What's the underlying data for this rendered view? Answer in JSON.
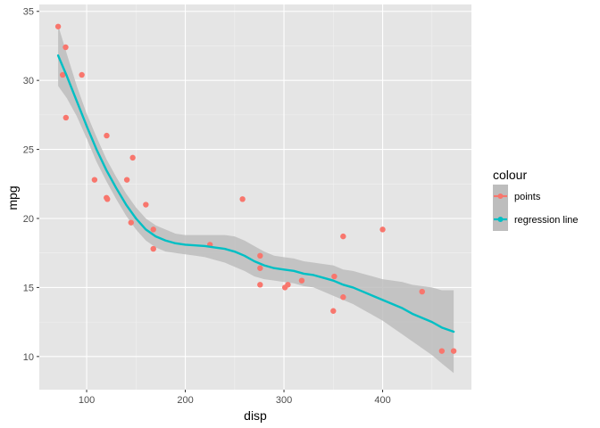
{
  "chart_data": {
    "type": "scatter",
    "title": "",
    "xlabel": "disp",
    "ylabel": "mpg",
    "xlim": [
      52,
      490
    ],
    "ylim": [
      7.6,
      35.5
    ],
    "x_ticks": [
      100,
      200,
      300,
      400
    ],
    "y_ticks": [
      10,
      15,
      20,
      25,
      30,
      35
    ],
    "grid": true,
    "background": "#e5e5e5",
    "legend": {
      "title": "colour",
      "placement": "right",
      "entries": [
        {
          "label": "points",
          "color": "#f8766d"
        },
        {
          "label": "regression line",
          "color": "#00bfc4"
        }
      ]
    },
    "series": [
      {
        "name": "points",
        "type": "scatter",
        "color": "#f8766d",
        "points": [
          [
            71.1,
            33.9
          ],
          [
            75.7,
            30.4
          ],
          [
            78.7,
            32.4
          ],
          [
            79.0,
            27.3
          ],
          [
            95.1,
            30.4
          ],
          [
            108.0,
            22.8
          ],
          [
            120.1,
            21.5
          ],
          [
            120.3,
            26.0
          ],
          [
            121.0,
            21.4
          ],
          [
            140.8,
            22.8
          ],
          [
            145.0,
            19.7
          ],
          [
            146.7,
            24.4
          ],
          [
            160.0,
            21.0
          ],
          [
            167.6,
            19.2
          ],
          [
            167.6,
            17.8
          ],
          [
            225.0,
            18.1
          ],
          [
            258.0,
            21.4
          ],
          [
            275.8,
            16.4
          ],
          [
            275.8,
            17.3
          ],
          [
            275.8,
            15.2
          ],
          [
            301.0,
            15.0
          ],
          [
            304.0,
            15.2
          ],
          [
            318.0,
            15.5
          ],
          [
            350.0,
            13.3
          ],
          [
            351.0,
            15.8
          ],
          [
            360.0,
            18.7
          ],
          [
            360.0,
            14.3
          ],
          [
            400.0,
            19.2
          ],
          [
            440.0,
            14.7
          ],
          [
            460.0,
            10.4
          ],
          [
            472.0,
            10.4
          ]
        ]
      },
      {
        "name": "regression line",
        "type": "line",
        "color": "#00bfc4",
        "confidence_band_color": "#bdbdbd",
        "points": [
          [
            71.1,
            31.8,
            29.6,
            34.0
          ],
          [
            80,
            30.3,
            28.7,
            31.9
          ],
          [
            90,
            28.5,
            27.4,
            29.6
          ],
          [
            100,
            26.7,
            25.8,
            27.6
          ],
          [
            110,
            25.0,
            24.1,
            25.9
          ],
          [
            120,
            23.5,
            22.7,
            24.3
          ],
          [
            130,
            22.2,
            21.4,
            23.0
          ],
          [
            140,
            21.0,
            20.2,
            21.8
          ],
          [
            150,
            20.0,
            19.2,
            20.8
          ],
          [
            160,
            19.2,
            18.4,
            20.0
          ],
          [
            170,
            18.7,
            17.9,
            19.5
          ],
          [
            180,
            18.4,
            17.6,
            19.2
          ],
          [
            190,
            18.2,
            17.5,
            18.9
          ],
          [
            200,
            18.1,
            17.4,
            18.8
          ],
          [
            210,
            18.05,
            17.3,
            18.8
          ],
          [
            220,
            18.0,
            17.2,
            18.8
          ],
          [
            230,
            17.9,
            17.0,
            18.8
          ],
          [
            240,
            17.8,
            16.8,
            18.8
          ],
          [
            250,
            17.6,
            16.5,
            18.7
          ],
          [
            260,
            17.3,
            16.2,
            18.4
          ],
          [
            270,
            16.9,
            15.8,
            18.0
          ],
          [
            280,
            16.6,
            15.6,
            17.6
          ],
          [
            290,
            16.4,
            15.5,
            17.3
          ],
          [
            300,
            16.3,
            15.4,
            17.2
          ],
          [
            310,
            16.2,
            15.3,
            17.1
          ],
          [
            320,
            16.0,
            15.1,
            16.9
          ],
          [
            330,
            15.9,
            15.0,
            16.8
          ],
          [
            340,
            15.7,
            14.7,
            16.7
          ],
          [
            350,
            15.5,
            14.4,
            16.6
          ],
          [
            360,
            15.2,
            14.1,
            16.3
          ],
          [
            370,
            15.0,
            13.8,
            16.2
          ],
          [
            380,
            14.7,
            13.4,
            16.0
          ],
          [
            390,
            14.4,
            13.0,
            15.8
          ],
          [
            400,
            14.1,
            12.6,
            15.6
          ],
          [
            410,
            13.8,
            12.1,
            15.5
          ],
          [
            420,
            13.5,
            11.6,
            15.4
          ],
          [
            430,
            13.1,
            11.1,
            15.2
          ],
          [
            440,
            12.8,
            10.6,
            15.1
          ],
          [
            450,
            12.5,
            10.1,
            15.0
          ],
          [
            460,
            12.1,
            9.5,
            14.8
          ],
          [
            472,
            11.8,
            8.8,
            14.8
          ]
        ]
      }
    ]
  }
}
